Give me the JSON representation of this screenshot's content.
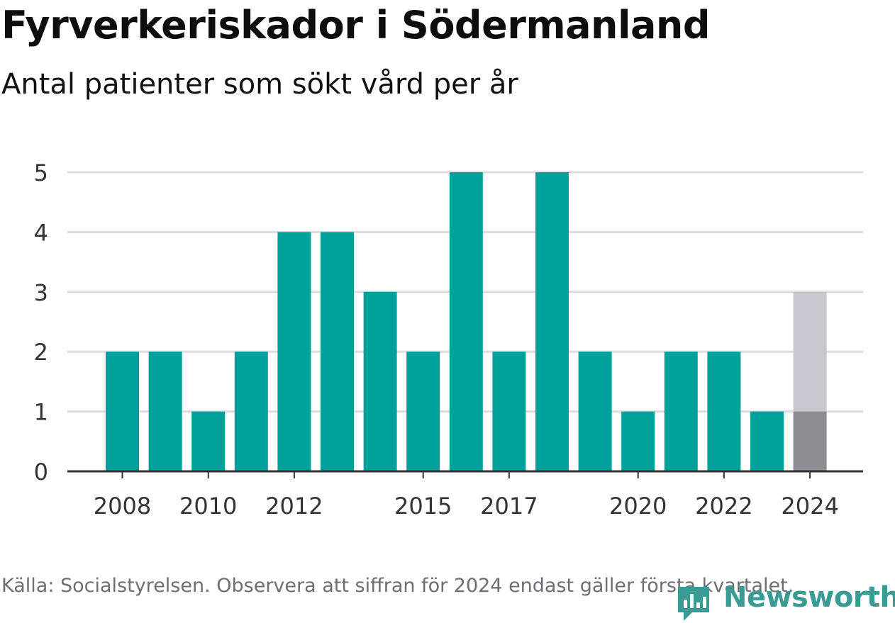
{
  "title": "Fyrverkeriskador i Södermanland",
  "subtitle": "Antal patienter som sökt vård per år",
  "source_note": "Källa: Socialstyrelsen. Observera att siffran för 2024 endast gäller första kvartalet.",
  "brand": {
    "name": "Newsworthy",
    "icon": "newsworthy-logo-icon",
    "color": "#3a9a94"
  },
  "colors": {
    "bar": "#00a19a",
    "grid": "#dcdcdc",
    "axis": "#333333",
    "partial_actual": "#8e8d93",
    "partial_projection": "#c8c7d0"
  },
  "chart_data": {
    "type": "bar",
    "x": [
      2008,
      2009,
      2010,
      2011,
      2012,
      2013,
      2014,
      2015,
      2016,
      2017,
      2018,
      2019,
      2020,
      2021,
      2022,
      2023,
      2024
    ],
    "values": [
      2,
      2,
      1,
      2,
      4,
      4,
      3,
      2,
      5,
      2,
      5,
      2,
      1,
      2,
      2,
      1,
      1
    ],
    "highlight": {
      "year": 2024,
      "actual": 1,
      "projected_total": 3
    },
    "x_tick_labels": [
      "2008",
      "2010",
      "2012",
      "2015",
      "2017",
      "2020",
      "2022",
      "2024"
    ],
    "y_ticks": [
      0,
      1,
      2,
      3,
      4,
      5
    ],
    "ylim": [
      0,
      5
    ],
    "grid": true,
    "xlabel": "",
    "ylabel": ""
  }
}
